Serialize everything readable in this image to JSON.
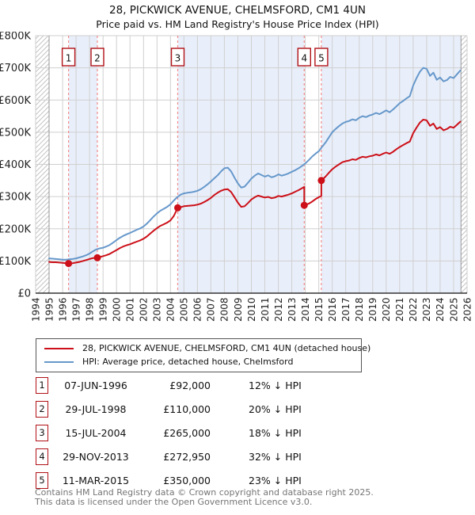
{
  "title": "28, PICKWICK AVENUE, CHELMSFORD, CM1 4UN",
  "subtitle": "Price paid vs. HM Land Registry's House Price Index (HPI)",
  "legend": {
    "series1": "28, PICKWICK AVENUE, CHELMSFORD, CM1 4UN (detached house)",
    "series2": "HPI: Average price, detached house, Chelmsford"
  },
  "transactions": [
    {
      "num": "1",
      "date": "07-JUN-1996",
      "price": "£92,000",
      "hpi": "12% ↓ HPI"
    },
    {
      "num": "2",
      "date": "29-JUL-1998",
      "price": "£110,000",
      "hpi": "20% ↓ HPI"
    },
    {
      "num": "3",
      "date": "15-JUL-2004",
      "price": "£265,000",
      "hpi": "18% ↓ HPI"
    },
    {
      "num": "4",
      "date": "29-NOV-2013",
      "price": "£272,950",
      "hpi": "32% ↓ HPI"
    },
    {
      "num": "5",
      "date": "11-MAR-2015",
      "price": "£350,000",
      "hpi": "23% ↓ HPI"
    }
  ],
  "footer": {
    "line1": "Contains HM Land Registry data © Crown copyright and database right 2025.",
    "line2": "This data is licensed under the Open Government Licence v3.0."
  },
  "colors": {
    "price": "#cc0f18",
    "hpi": "#6698cb",
    "dashed": "#f28b8b",
    "band": "#e9effa",
    "grid": "#cfcfcf",
    "hatch": "#c4c4c4",
    "axis": "#333333",
    "box_border": "#b01116",
    "tick_text": "#222222"
  },
  "chart_data": {
    "type": "line",
    "title": "Price paid vs. HM Land Registry's House Price Index (HPI)",
    "x_axis": {
      "range": [
        1994,
        2026
      ],
      "ticks": [
        1994,
        1995,
        1996,
        1997,
        1998,
        1999,
        2000,
        2001,
        2002,
        2003,
        2004,
        2005,
        2006,
        2007,
        2008,
        2009,
        2010,
        2011,
        2012,
        2013,
        2014,
        2015,
        2016,
        2017,
        2018,
        2019,
        2020,
        2021,
        2022,
        2023,
        2024,
        2025,
        2026
      ]
    },
    "y_axis": {
      "range_gbp": [
        0,
        800000
      ],
      "ticks_k": [
        [
          0,
          "£0"
        ],
        [
          100,
          "£100K"
        ],
        [
          200,
          "£200K"
        ],
        [
          300,
          "£300K"
        ],
        [
          400,
          "£400K"
        ],
        [
          500,
          "£500K"
        ],
        [
          600,
          "£600K"
        ],
        [
          700,
          "£700K"
        ],
        [
          800,
          "£800K"
        ]
      ]
    },
    "series": [
      {
        "name": "price-paid",
        "color": "#cc0f18",
        "points_k": [
          [
            1995.0,
            97
          ],
          [
            1995.25,
            96
          ],
          [
            1995.5,
            96
          ],
          [
            1995.75,
            95
          ],
          [
            1996.0,
            94
          ],
          [
            1996.25,
            93
          ],
          [
            1996.44,
            92
          ],
          [
            1996.75,
            93
          ],
          [
            1997.0,
            95
          ],
          [
            1997.25,
            97
          ],
          [
            1997.5,
            100
          ],
          [
            1997.75,
            103
          ],
          [
            1998.0,
            106
          ],
          [
            1998.25,
            109
          ],
          [
            1998.58,
            110
          ],
          [
            1998.75,
            112
          ],
          [
            1999.0,
            115
          ],
          [
            1999.25,
            118
          ],
          [
            1999.5,
            122
          ],
          [
            1999.75,
            128
          ],
          [
            2000.0,
            134
          ],
          [
            2000.25,
            140
          ],
          [
            2000.5,
            145
          ],
          [
            2000.75,
            149
          ],
          [
            2001.0,
            152
          ],
          [
            2001.25,
            156
          ],
          [
            2001.5,
            160
          ],
          [
            2001.75,
            164
          ],
          [
            2002.0,
            169
          ],
          [
            2002.25,
            176
          ],
          [
            2002.5,
            185
          ],
          [
            2002.75,
            194
          ],
          [
            2003.0,
            202
          ],
          [
            2003.25,
            209
          ],
          [
            2003.5,
            214
          ],
          [
            2003.75,
            219
          ],
          [
            2004.0,
            226
          ],
          [
            2004.25,
            240
          ],
          [
            2004.54,
            265
          ],
          [
            2004.75,
            267
          ],
          [
            2005.0,
            270
          ],
          [
            2005.25,
            271
          ],
          [
            2005.5,
            272
          ],
          [
            2005.75,
            273
          ],
          [
            2006.0,
            275
          ],
          [
            2006.25,
            278
          ],
          [
            2006.5,
            283
          ],
          [
            2006.75,
            289
          ],
          [
            2007.0,
            296
          ],
          [
            2007.25,
            305
          ],
          [
            2007.5,
            312
          ],
          [
            2007.75,
            318
          ],
          [
            2008.0,
            322
          ],
          [
            2008.25,
            323
          ],
          [
            2008.5,
            314
          ],
          [
            2008.75,
            298
          ],
          [
            2009.0,
            281
          ],
          [
            2009.25,
            268
          ],
          [
            2009.5,
            270
          ],
          [
            2009.75,
            280
          ],
          [
            2010.0,
            291
          ],
          [
            2010.25,
            298
          ],
          [
            2010.5,
            303
          ],
          [
            2010.75,
            300
          ],
          [
            2011.0,
            297
          ],
          [
            2011.25,
            299
          ],
          [
            2011.5,
            295
          ],
          [
            2011.75,
            297
          ],
          [
            2012.0,
            302
          ],
          [
            2012.25,
            300
          ],
          [
            2012.5,
            303
          ],
          [
            2012.75,
            306
          ],
          [
            2013.0,
            310
          ],
          [
            2013.25,
            315
          ],
          [
            2013.5,
            320
          ],
          [
            2013.75,
            326
          ],
          [
            2013.92,
            330
          ],
          [
            2013.92,
            273
          ],
          [
            2014.0,
            274
          ],
          [
            2014.25,
            278
          ],
          [
            2014.5,
            284
          ],
          [
            2014.75,
            292
          ],
          [
            2015.0,
            298
          ],
          [
            2015.19,
            302
          ],
          [
            2015.19,
            350
          ],
          [
            2015.25,
            352
          ],
          [
            2015.5,
            362
          ],
          [
            2015.75,
            374
          ],
          [
            2016.0,
            385
          ],
          [
            2016.25,
            393
          ],
          [
            2016.5,
            400
          ],
          [
            2016.75,
            407
          ],
          [
            2017.0,
            410
          ],
          [
            2017.25,
            412
          ],
          [
            2017.5,
            416
          ],
          [
            2017.75,
            414
          ],
          [
            2018.0,
            420
          ],
          [
            2018.25,
            424
          ],
          [
            2018.5,
            422
          ],
          [
            2018.75,
            425
          ],
          [
            2019.0,
            427
          ],
          [
            2019.25,
            431
          ],
          [
            2019.5,
            428
          ],
          [
            2019.75,
            433
          ],
          [
            2020.0,
            437
          ],
          [
            2020.25,
            433
          ],
          [
            2020.5,
            439
          ],
          [
            2020.75,
            447
          ],
          [
            2021.0,
            454
          ],
          [
            2021.25,
            460
          ],
          [
            2021.5,
            466
          ],
          [
            2021.75,
            471
          ],
          [
            2022.0,
            497
          ],
          [
            2022.25,
            514
          ],
          [
            2022.5,
            530
          ],
          [
            2022.75,
            539
          ],
          [
            2023.0,
            537
          ],
          [
            2023.25,
            520
          ],
          [
            2023.5,
            527
          ],
          [
            2023.75,
            510
          ],
          [
            2024.0,
            516
          ],
          [
            2024.25,
            506
          ],
          [
            2024.5,
            510
          ],
          [
            2024.75,
            517
          ],
          [
            2025.0,
            514
          ],
          [
            2025.25,
            523
          ],
          [
            2025.5,
            533
          ]
        ]
      },
      {
        "name": "hpi",
        "color": "#6698cb",
        "points_k": [
          [
            1995.0,
            108
          ],
          [
            1995.25,
            107
          ],
          [
            1995.5,
            106
          ],
          [
            1995.75,
            105
          ],
          [
            1996.0,
            104
          ],
          [
            1996.25,
            104
          ],
          [
            1996.5,
            105
          ],
          [
            1996.75,
            106
          ],
          [
            1997.0,
            108
          ],
          [
            1997.25,
            111
          ],
          [
            1997.5,
            114
          ],
          [
            1997.75,
            118
          ],
          [
            1998.0,
            123
          ],
          [
            1998.25,
            130
          ],
          [
            1998.5,
            136
          ],
          [
            1998.75,
            139
          ],
          [
            1999.0,
            141
          ],
          [
            1999.25,
            145
          ],
          [
            1999.5,
            150
          ],
          [
            1999.75,
            157
          ],
          [
            2000.0,
            165
          ],
          [
            2000.25,
            172
          ],
          [
            2000.5,
            178
          ],
          [
            2000.75,
            183
          ],
          [
            2001.0,
            187
          ],
          [
            2001.25,
            192
          ],
          [
            2001.5,
            197
          ],
          [
            2001.75,
            201
          ],
          [
            2002.0,
            207
          ],
          [
            2002.25,
            216
          ],
          [
            2002.5,
            227
          ],
          [
            2002.75,
            238
          ],
          [
            2003.0,
            248
          ],
          [
            2003.25,
            256
          ],
          [
            2003.5,
            262
          ],
          [
            2003.75,
            268
          ],
          [
            2004.0,
            276
          ],
          [
            2004.25,
            288
          ],
          [
            2004.5,
            298
          ],
          [
            2004.75,
            306
          ],
          [
            2005.0,
            310
          ],
          [
            2005.25,
            312
          ],
          [
            2005.5,
            313
          ],
          [
            2005.75,
            315
          ],
          [
            2006.0,
            318
          ],
          [
            2006.25,
            323
          ],
          [
            2006.5,
            330
          ],
          [
            2006.75,
            338
          ],
          [
            2007.0,
            347
          ],
          [
            2007.25,
            357
          ],
          [
            2007.5,
            366
          ],
          [
            2007.75,
            378
          ],
          [
            2008.0,
            388
          ],
          [
            2008.25,
            390
          ],
          [
            2008.5,
            378
          ],
          [
            2008.75,
            359
          ],
          [
            2009.0,
            341
          ],
          [
            2009.25,
            328
          ],
          [
            2009.5,
            331
          ],
          [
            2009.75,
            343
          ],
          [
            2010.0,
            356
          ],
          [
            2010.25,
            365
          ],
          [
            2010.5,
            372
          ],
          [
            2010.75,
            367
          ],
          [
            2011.0,
            362
          ],
          [
            2011.25,
            366
          ],
          [
            2011.5,
            360
          ],
          [
            2011.75,
            363
          ],
          [
            2012.0,
            369
          ],
          [
            2012.25,
            365
          ],
          [
            2012.5,
            368
          ],
          [
            2012.75,
            372
          ],
          [
            2013.0,
            377
          ],
          [
            2013.25,
            382
          ],
          [
            2013.5,
            388
          ],
          [
            2013.75,
            395
          ],
          [
            2014.0,
            403
          ],
          [
            2014.25,
            413
          ],
          [
            2014.5,
            424
          ],
          [
            2014.75,
            433
          ],
          [
            2015.0,
            441
          ],
          [
            2015.25,
            455
          ],
          [
            2015.5,
            468
          ],
          [
            2015.75,
            484
          ],
          [
            2016.0,
            500
          ],
          [
            2016.25,
            510
          ],
          [
            2016.5,
            519
          ],
          [
            2016.75,
            527
          ],
          [
            2017.0,
            532
          ],
          [
            2017.25,
            535
          ],
          [
            2017.5,
            540
          ],
          [
            2017.75,
            537
          ],
          [
            2018.0,
            545
          ],
          [
            2018.25,
            550
          ],
          [
            2018.5,
            547
          ],
          [
            2018.75,
            552
          ],
          [
            2019.0,
            555
          ],
          [
            2019.25,
            560
          ],
          [
            2019.5,
            556
          ],
          [
            2019.75,
            562
          ],
          [
            2020.0,
            568
          ],
          [
            2020.25,
            562
          ],
          [
            2020.5,
            570
          ],
          [
            2020.75,
            580
          ],
          [
            2021.0,
            590
          ],
          [
            2021.25,
            597
          ],
          [
            2021.5,
            605
          ],
          [
            2021.75,
            612
          ],
          [
            2022.0,
            645
          ],
          [
            2022.25,
            668
          ],
          [
            2022.5,
            688
          ],
          [
            2022.75,
            700
          ],
          [
            2023.0,
            697
          ],
          [
            2023.25,
            675
          ],
          [
            2023.5,
            685
          ],
          [
            2023.75,
            663
          ],
          [
            2024.0,
            670
          ],
          [
            2024.25,
            658
          ],
          [
            2024.5,
            662
          ],
          [
            2024.75,
            672
          ],
          [
            2025.0,
            668
          ],
          [
            2025.25,
            680
          ],
          [
            2025.5,
            692
          ]
        ]
      }
    ],
    "sale_markers": [
      {
        "n": "1",
        "t": 1996.44,
        "price_k": 92
      },
      {
        "n": "2",
        "t": 1998.58,
        "price_k": 110
      },
      {
        "n": "3",
        "t": 2004.54,
        "price_k": 265
      },
      {
        "n": "4",
        "t": 2013.92,
        "price_k": 273
      },
      {
        "n": "5",
        "t": 2015.19,
        "price_k": 350
      }
    ],
    "owned_bands": [
      [
        1996.44,
        1998.58
      ],
      [
        2004.54,
        2013.92
      ],
      [
        2015.19,
        2025.55
      ]
    ],
    "no_data_hatch": [
      [
        1994,
        1995.0
      ],
      [
        2025.55,
        2026
      ]
    ]
  }
}
